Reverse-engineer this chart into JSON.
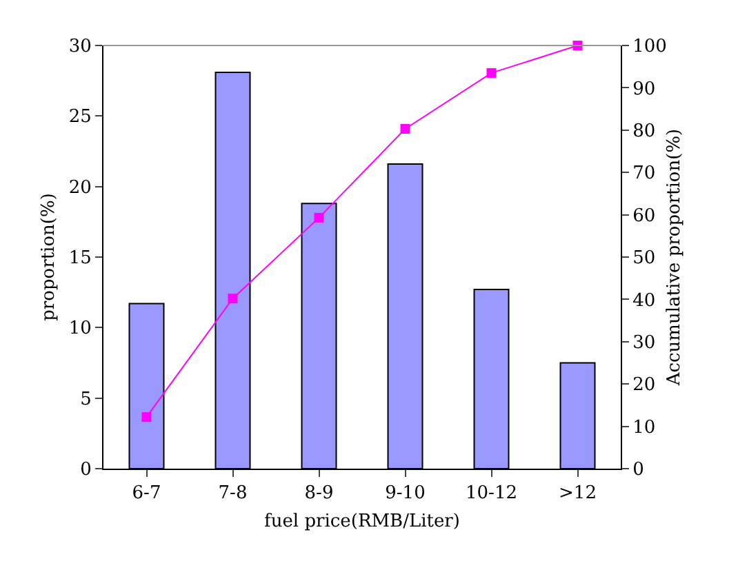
{
  "chart_data": {
    "type": "bar",
    "xlabel": "fuel price(RMB/Liter)",
    "ylabel": "proportion(%)",
    "y2label": "Accumulative proportion(%)",
    "categories": [
      "6-7",
      "7-8",
      "8-9",
      "9-10",
      "10-12",
      ">12"
    ],
    "series": [
      {
        "color": "#9999ff",
        "values": [
          11.7,
          28.1,
          18.8,
          21.6,
          12.7,
          7.5
        ]
      },
      {
        "type": "line",
        "axis": "y2",
        "color": "#ff00ff",
        "marker": "square",
        "line_style": "solid",
        "values": [
          12.2,
          40.2,
          59.3,
          80.3,
          93.5,
          100
        ]
      }
    ],
    "ylim": [
      0,
      30
    ],
    "yticks": [
      0,
      5,
      10,
      15,
      20,
      25,
      30
    ],
    "y2lim": [
      0,
      100
    ],
    "y2ticks": [
      0,
      10,
      20,
      30,
      40,
      50,
      60,
      70,
      80,
      90,
      100
    ],
    "grid": false,
    "legend": false
  }
}
